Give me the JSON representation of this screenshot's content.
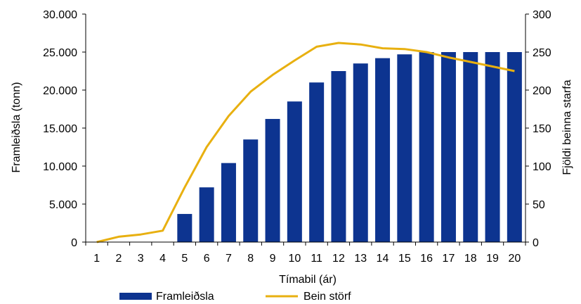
{
  "chart_data": {
    "type": "bar",
    "categories": [
      "1",
      "2",
      "3",
      "4",
      "5",
      "6",
      "7",
      "8",
      "9",
      "10",
      "11",
      "12",
      "13",
      "14",
      "15",
      "16",
      "17",
      "18",
      "19",
      "20"
    ],
    "series": [
      {
        "name": "Framleiðsla",
        "type": "bar",
        "axis": "left",
        "color": "#0d3490",
        "values": [
          0,
          0,
          0,
          0,
          3700,
          7200,
          10400,
          13500,
          16200,
          18500,
          21000,
          22500,
          23500,
          24200,
          24700,
          25000,
          25000,
          25000,
          25000,
          25000
        ]
      },
      {
        "name": "Bein störf",
        "type": "line",
        "axis": "right",
        "color": "#e8b010",
        "values": [
          0,
          7,
          10,
          15,
          72,
          125,
          166,
          198,
          220,
          239,
          257,
          262,
          260,
          255,
          254,
          250,
          243,
          237,
          231,
          225
        ]
      }
    ],
    "xlabel": "Tímabil (ár)",
    "ylabel": "Framleiðsla (tonn)",
    "y2label": "Fjöldi beinna starfa",
    "ylim": [
      0,
      30000
    ],
    "y2lim": [
      0,
      300
    ],
    "yticks": [
      "0",
      "5.000",
      "10.000",
      "15.000",
      "20.000",
      "25.000",
      "30.000"
    ],
    "y2ticks": [
      "0",
      "50",
      "100",
      "150",
      "200",
      "250",
      "300"
    ],
    "grid": false,
    "legend": "bottom"
  }
}
